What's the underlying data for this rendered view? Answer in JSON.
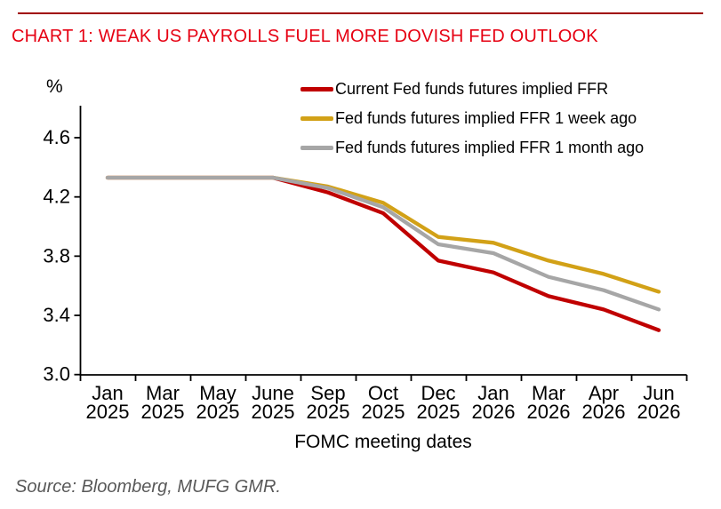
{
  "header": {
    "title": "CHART 1: WEAK US PAYROLLS FUEL MORE DOVISH FED OUTLOOK",
    "accent_color": "#e60012",
    "rule_color": "#a00000"
  },
  "chart_data": {
    "type": "line",
    "title": "CHART 1: WEAK US PAYROLLS FUEL MORE DOVISH FED OUTLOOK",
    "unit": "%",
    "xlabel": "FOMC meeting dates",
    "ylabel": "%",
    "ylim": [
      3.0,
      4.6
    ],
    "yticks": [
      "4.6",
      "4.2",
      "3.8",
      "3.4",
      "3.0"
    ],
    "grid": false,
    "legend_position": "top-right",
    "categories": [
      "Jan 2025",
      "Mar 2025",
      "May 2025",
      "June 2025",
      "Sep 2025",
      "Oct 2025",
      "Dec 2025",
      "Jan 2026",
      "Mar 2026",
      "Apr 2026",
      "Jun 2026"
    ],
    "series": [
      {
        "name": "Current Fed funds futures implied FFR",
        "color": "#c00000",
        "values": [
          4.33,
          4.33,
          4.33,
          4.33,
          4.23,
          4.09,
          3.77,
          3.69,
          3.53,
          3.44,
          3.3
        ]
      },
      {
        "name": "Fed funds futures implied FFR 1 week ago",
        "color": "#d2a117",
        "values": [
          4.33,
          4.33,
          4.33,
          4.33,
          4.27,
          4.16,
          3.93,
          3.89,
          3.77,
          3.68,
          3.56
        ]
      },
      {
        "name": "Fed funds futures implied FFR 1 month ago",
        "color": "#a6a6a6",
        "values": [
          4.33,
          4.33,
          4.33,
          4.33,
          4.26,
          4.13,
          3.88,
          3.82,
          3.66,
          3.57,
          3.44
        ]
      }
    ],
    "axis_color": "#000000"
  },
  "footer": {
    "source": "Source: Bloomberg, MUFG GMR."
  }
}
